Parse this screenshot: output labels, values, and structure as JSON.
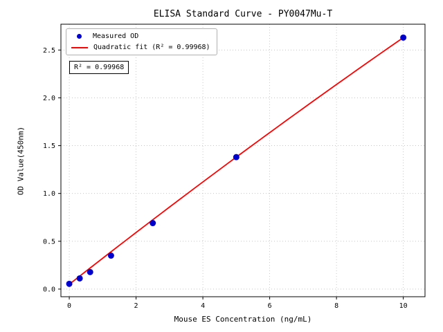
{
  "chart_data": {
    "type": "scatter",
    "title": "ELISA Standard Curve - PY0047Mu-T",
    "xlabel": "Mouse ES Concentration (ng/mL)",
    "ylabel": "OD Value(450nm)",
    "xlim": [
      -0.25,
      10.65
    ],
    "ylim": [
      -0.08,
      2.77
    ],
    "grid": true,
    "grid_color": "#bbbbbb",
    "x_ticks": [
      {
        "v": 0,
        "label": "0"
      },
      {
        "v": 2,
        "label": "2"
      },
      {
        "v": 4,
        "label": "4"
      },
      {
        "v": 6,
        "label": "6"
      },
      {
        "v": 8,
        "label": "8"
      },
      {
        "v": 10,
        "label": "10"
      }
    ],
    "y_ticks": [
      {
        "v": 0.0,
        "label": "0.0"
      },
      {
        "v": 0.5,
        "label": "0.5"
      },
      {
        "v": 1.0,
        "label": "1.0"
      },
      {
        "v": 1.5,
        "label": "1.5"
      },
      {
        "v": 2.0,
        "label": "2.0"
      },
      {
        "v": 2.5,
        "label": "2.5"
      }
    ],
    "series": [
      {
        "name": "Measured OD",
        "type": "scatter",
        "color": "#0000cd",
        "x": [
          0,
          0.3125,
          0.625,
          1.25,
          2.5,
          5,
          10
        ],
        "y": [
          0.055,
          0.112,
          0.178,
          0.35,
          0.69,
          1.38,
          2.63
        ]
      },
      {
        "name": "Quadratic fit (R² = 0.99968)",
        "type": "line",
        "color": "#ff0000",
        "fit_coeffs": {
          "a": -0.0016,
          "b": 0.274,
          "c": 0.05
        },
        "x_range": [
          0,
          10
        ]
      }
    ],
    "legend_position": "upper left",
    "annotation": "R² = 0.99968",
    "r_squared": 0.99968
  }
}
